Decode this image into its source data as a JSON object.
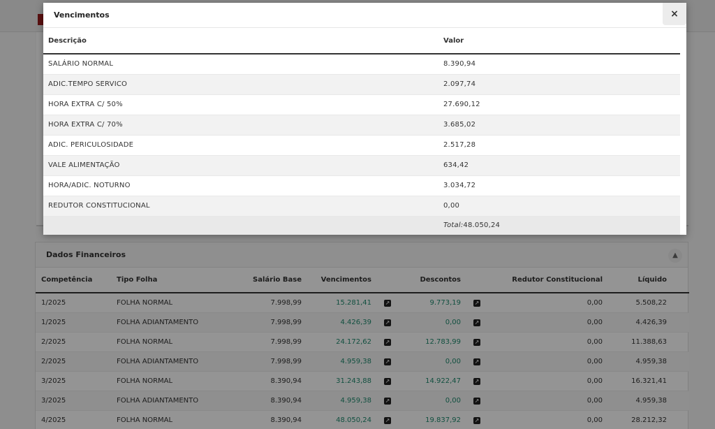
{
  "modal": {
    "title": "Vencimentos",
    "close_label": "×",
    "headers": {
      "descricao": "Descrição",
      "valor": "Valor"
    },
    "rows": [
      {
        "descricao": "SALÁRIO NORMAL",
        "valor": "8.390,94"
      },
      {
        "descricao": "ADIC.TEMPO SERVICO",
        "valor": "2.097,74"
      },
      {
        "descricao": "HORA EXTRA C/ 50%",
        "valor": "27.690,12"
      },
      {
        "descricao": "HORA EXTRA C/ 70%",
        "valor": "3.685,02"
      },
      {
        "descricao": "ADIC. PERICULOSIDADE",
        "valor": "2.517,28"
      },
      {
        "descricao": "VALE ALIMENTAÇÃO",
        "valor": "634,42"
      },
      {
        "descricao": "HORA/ADIC. NOTURNO",
        "valor": "3.034,72"
      },
      {
        "descricao": "REDUTOR CONSTITUCIONAL",
        "valor": "0,00"
      }
    ],
    "total_label": "Total:",
    "total_value": "48.050,24"
  },
  "dados_financeiros": {
    "title": "Dados Financeiros",
    "toggle_icon": "chevron-up-icon",
    "columns": {
      "competencia": "Competência",
      "tipo_folha": "Tipo Folha",
      "salario_base": "Salário Base",
      "vencimentos": "Vencimentos",
      "descontos": "Descontos",
      "redutor": "Redutor Constitucional",
      "liquido": "Líquido"
    },
    "rows": [
      {
        "competencia": "1/2025",
        "tipo_folha": "FOLHA NORMAL",
        "salario_base": "7.998,99",
        "vencimentos": "15.281,41",
        "descontos": "9.773,19",
        "redutor": "0,00",
        "liquido": "5.508,22"
      },
      {
        "competencia": "1/2025",
        "tipo_folha": "FOLHA ADIANTAMENTO",
        "salario_base": "7.998,99",
        "vencimentos": "4.426,39",
        "descontos": "0,00",
        "redutor": "0,00",
        "liquido": "4.426,39"
      },
      {
        "competencia": "2/2025",
        "tipo_folha": "FOLHA NORMAL",
        "salario_base": "7.998,99",
        "vencimentos": "24.172,62",
        "descontos": "12.783,99",
        "redutor": "0,00",
        "liquido": "11.388,63"
      },
      {
        "competencia": "2/2025",
        "tipo_folha": "FOLHA ADIANTAMENTO",
        "salario_base": "7.998,99",
        "vencimentos": "4.959,38",
        "descontos": "0,00",
        "redutor": "0,00",
        "liquido": "4.959,38"
      },
      {
        "competencia": "3/2025",
        "tipo_folha": "FOLHA NORMAL",
        "salario_base": "8.390,94",
        "vencimentos": "31.243,88",
        "descontos": "14.922,47",
        "redutor": "0,00",
        "liquido": "16.321,41"
      },
      {
        "competencia": "3/2025",
        "tipo_folha": "FOLHA ADIANTAMENTO",
        "salario_base": "8.390,94",
        "vencimentos": "4.959,38",
        "descontos": "0,00",
        "redutor": "0,00",
        "liquido": "4.959,38"
      },
      {
        "competencia": "4/2025",
        "tipo_folha": "FOLHA NORMAL",
        "salario_base": "8.390,94",
        "vencimentos": "48.050,24",
        "descontos": "19.837,92",
        "redutor": "0,00",
        "liquido": "28.212,32"
      }
    ]
  },
  "colors": {
    "accent_green": "#1f8a6e",
    "header_border": "#333333",
    "brand_red": "#9b1c1c"
  }
}
